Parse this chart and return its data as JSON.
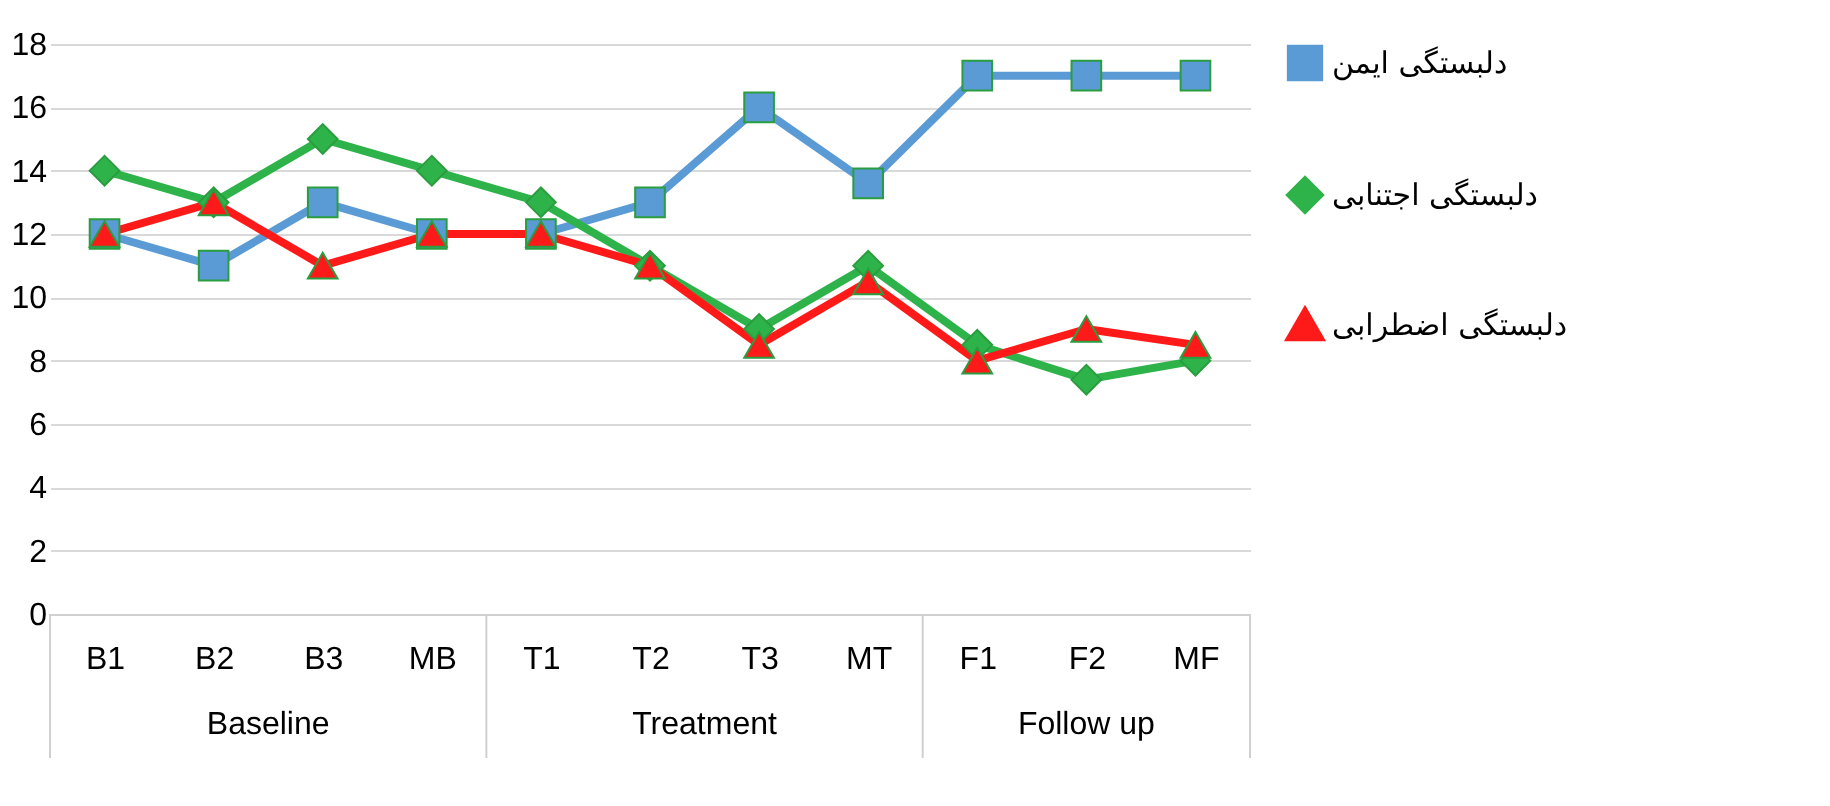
{
  "chart_data": {
    "type": "line",
    "categories": [
      "B1",
      "B2",
      "B3",
      "MB",
      "T1",
      "T2",
      "T3",
      "MT",
      "F1",
      "F2",
      "MF"
    ],
    "series": [
      {
        "name": "دلبستگی ایمن",
        "color": "#5b9bd5",
        "marker": "square",
        "values": [
          12,
          11,
          13,
          12,
          12,
          13,
          16,
          13.6,
          17,
          17,
          17
        ]
      },
      {
        "name": "دلبستگی اجتنابی",
        "color": "#2eb34a",
        "marker": "diamond",
        "values": [
          14,
          13,
          15,
          14,
          13,
          11,
          9,
          11,
          8.5,
          7.4,
          8
        ]
      },
      {
        "name": "دلبستگی اضطرابی",
        "color": "#ff1a1a",
        "marker": "triangle",
        "values": [
          12,
          13,
          11,
          12,
          12,
          11,
          8.5,
          10.5,
          8,
          9,
          8.5
        ]
      }
    ],
    "annotations": [
      "Baseline",
      "Treatment",
      "Follow up"
    ],
    "ylim": [
      0,
      18
    ],
    "yticks": [
      0,
      2,
      4,
      6,
      8,
      10,
      12,
      14,
      16,
      18
    ],
    "grid": "y",
    "legend": "right",
    "line_style": "solid"
  }
}
